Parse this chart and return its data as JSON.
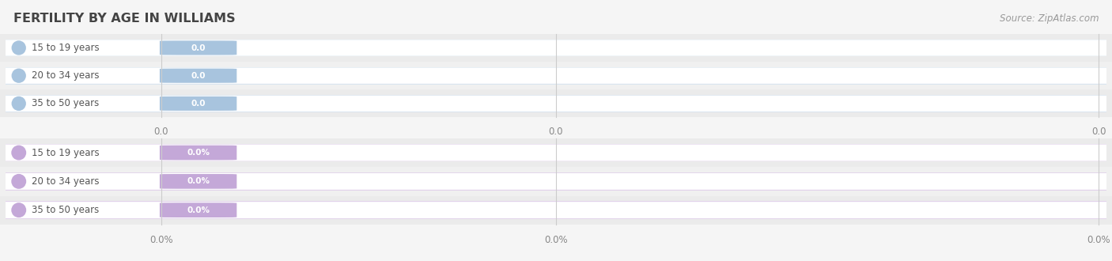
{
  "title": "FERTILITY BY AGE IN WILLIAMS",
  "source_text": "Source: ZipAtlas.com",
  "sections": [
    {
      "categories": [
        "15 to 19 years",
        "20 to 34 years",
        "35 to 50 years"
      ],
      "values": [
        "0.0",
        "0.0",
        "0.0"
      ],
      "bar_bg_color": "#f0f4f8",
      "bar_edge_color": "#d8e4ef",
      "circle_color": "#a8c4de",
      "badge_color": "#a8c4de",
      "label_color": "#555555",
      "value_text_color": "#ffffff",
      "row_colors": [
        "#ebebeb",
        "#f0f0f0",
        "#ebebeb"
      ]
    },
    {
      "categories": [
        "15 to 19 years",
        "20 to 34 years",
        "35 to 50 years"
      ],
      "values": [
        "0.0%",
        "0.0%",
        "0.0%"
      ],
      "bar_bg_color": "#f5f0f7",
      "bar_edge_color": "#e0d0ea",
      "circle_color": "#c4a8d8",
      "badge_color": "#c4a8d8",
      "label_color": "#555555",
      "value_text_color": "#ffffff",
      "row_colors": [
        "#ebebeb",
        "#f0f0f0",
        "#ebebeb"
      ]
    }
  ],
  "tick_values_top": [
    "0.0",
    "0.0",
    "0.0"
  ],
  "tick_values_bot": [
    "0.0%",
    "0.0%",
    "0.0%"
  ],
  "background_color": "#f5f5f5",
  "figsize": [
    14.06,
    3.3
  ],
  "dpi": 100
}
